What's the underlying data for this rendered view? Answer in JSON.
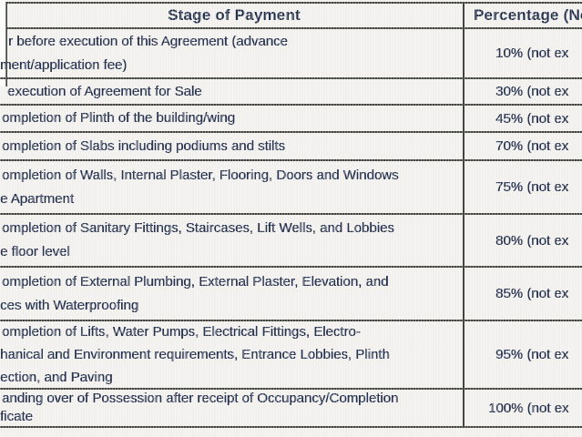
{
  "table": {
    "columns": [
      {
        "header": "Stage of Payment"
      },
      {
        "header": "Percentage (No"
      }
    ],
    "rows": [
      {
        "stage_lines": [
          "r before execution of this Agreement (advance",
          "ment/application fee)"
        ],
        "percentage": "10% (not ex"
      },
      {
        "stage_lines": [
          "execution of Agreement for Sale"
        ],
        "percentage": "30% (not ex"
      },
      {
        "stage_lines": [
          "ompletion of Plinth of the building/wing"
        ],
        "percentage": "45% (not ex"
      },
      {
        "stage_lines": [
          "ompletion of Slabs including podiums and stilts"
        ],
        "percentage": "70% (not ex"
      },
      {
        "stage_lines": [
          "ompletion of Walls, Internal Plaster, Flooring, Doors and Windows",
          "e Apartment"
        ],
        "percentage": "75% (not ex"
      },
      {
        "stage_lines": [
          "ompletion of Sanitary Fittings, Staircases, Lift Wells, and Lobbies",
          "e floor level"
        ],
        "percentage": "80% (not ex"
      },
      {
        "stage_lines": [
          "ompletion of External Plumbing, External Plaster, Elevation, and",
          "ces with Waterproofing"
        ],
        "percentage": "85% (not ex"
      },
      {
        "stage_lines": [
          "ompletion of Lifts, Water Pumps, Electrical Fittings, Electro-",
          "hanical and Environment requirements, Entrance Lobbies, Plinth",
          "ection, and Paving"
        ],
        "percentage": "95% (not ex"
      },
      {
        "stage_lines": [
          "anding over of Possession after receipt of Occupancy/Completion",
          "ficate"
        ],
        "percentage": "100% (not ex"
      }
    ]
  },
  "colors": {
    "text": "#273350",
    "border": "#43463f",
    "background": "#f1f0ec"
  }
}
